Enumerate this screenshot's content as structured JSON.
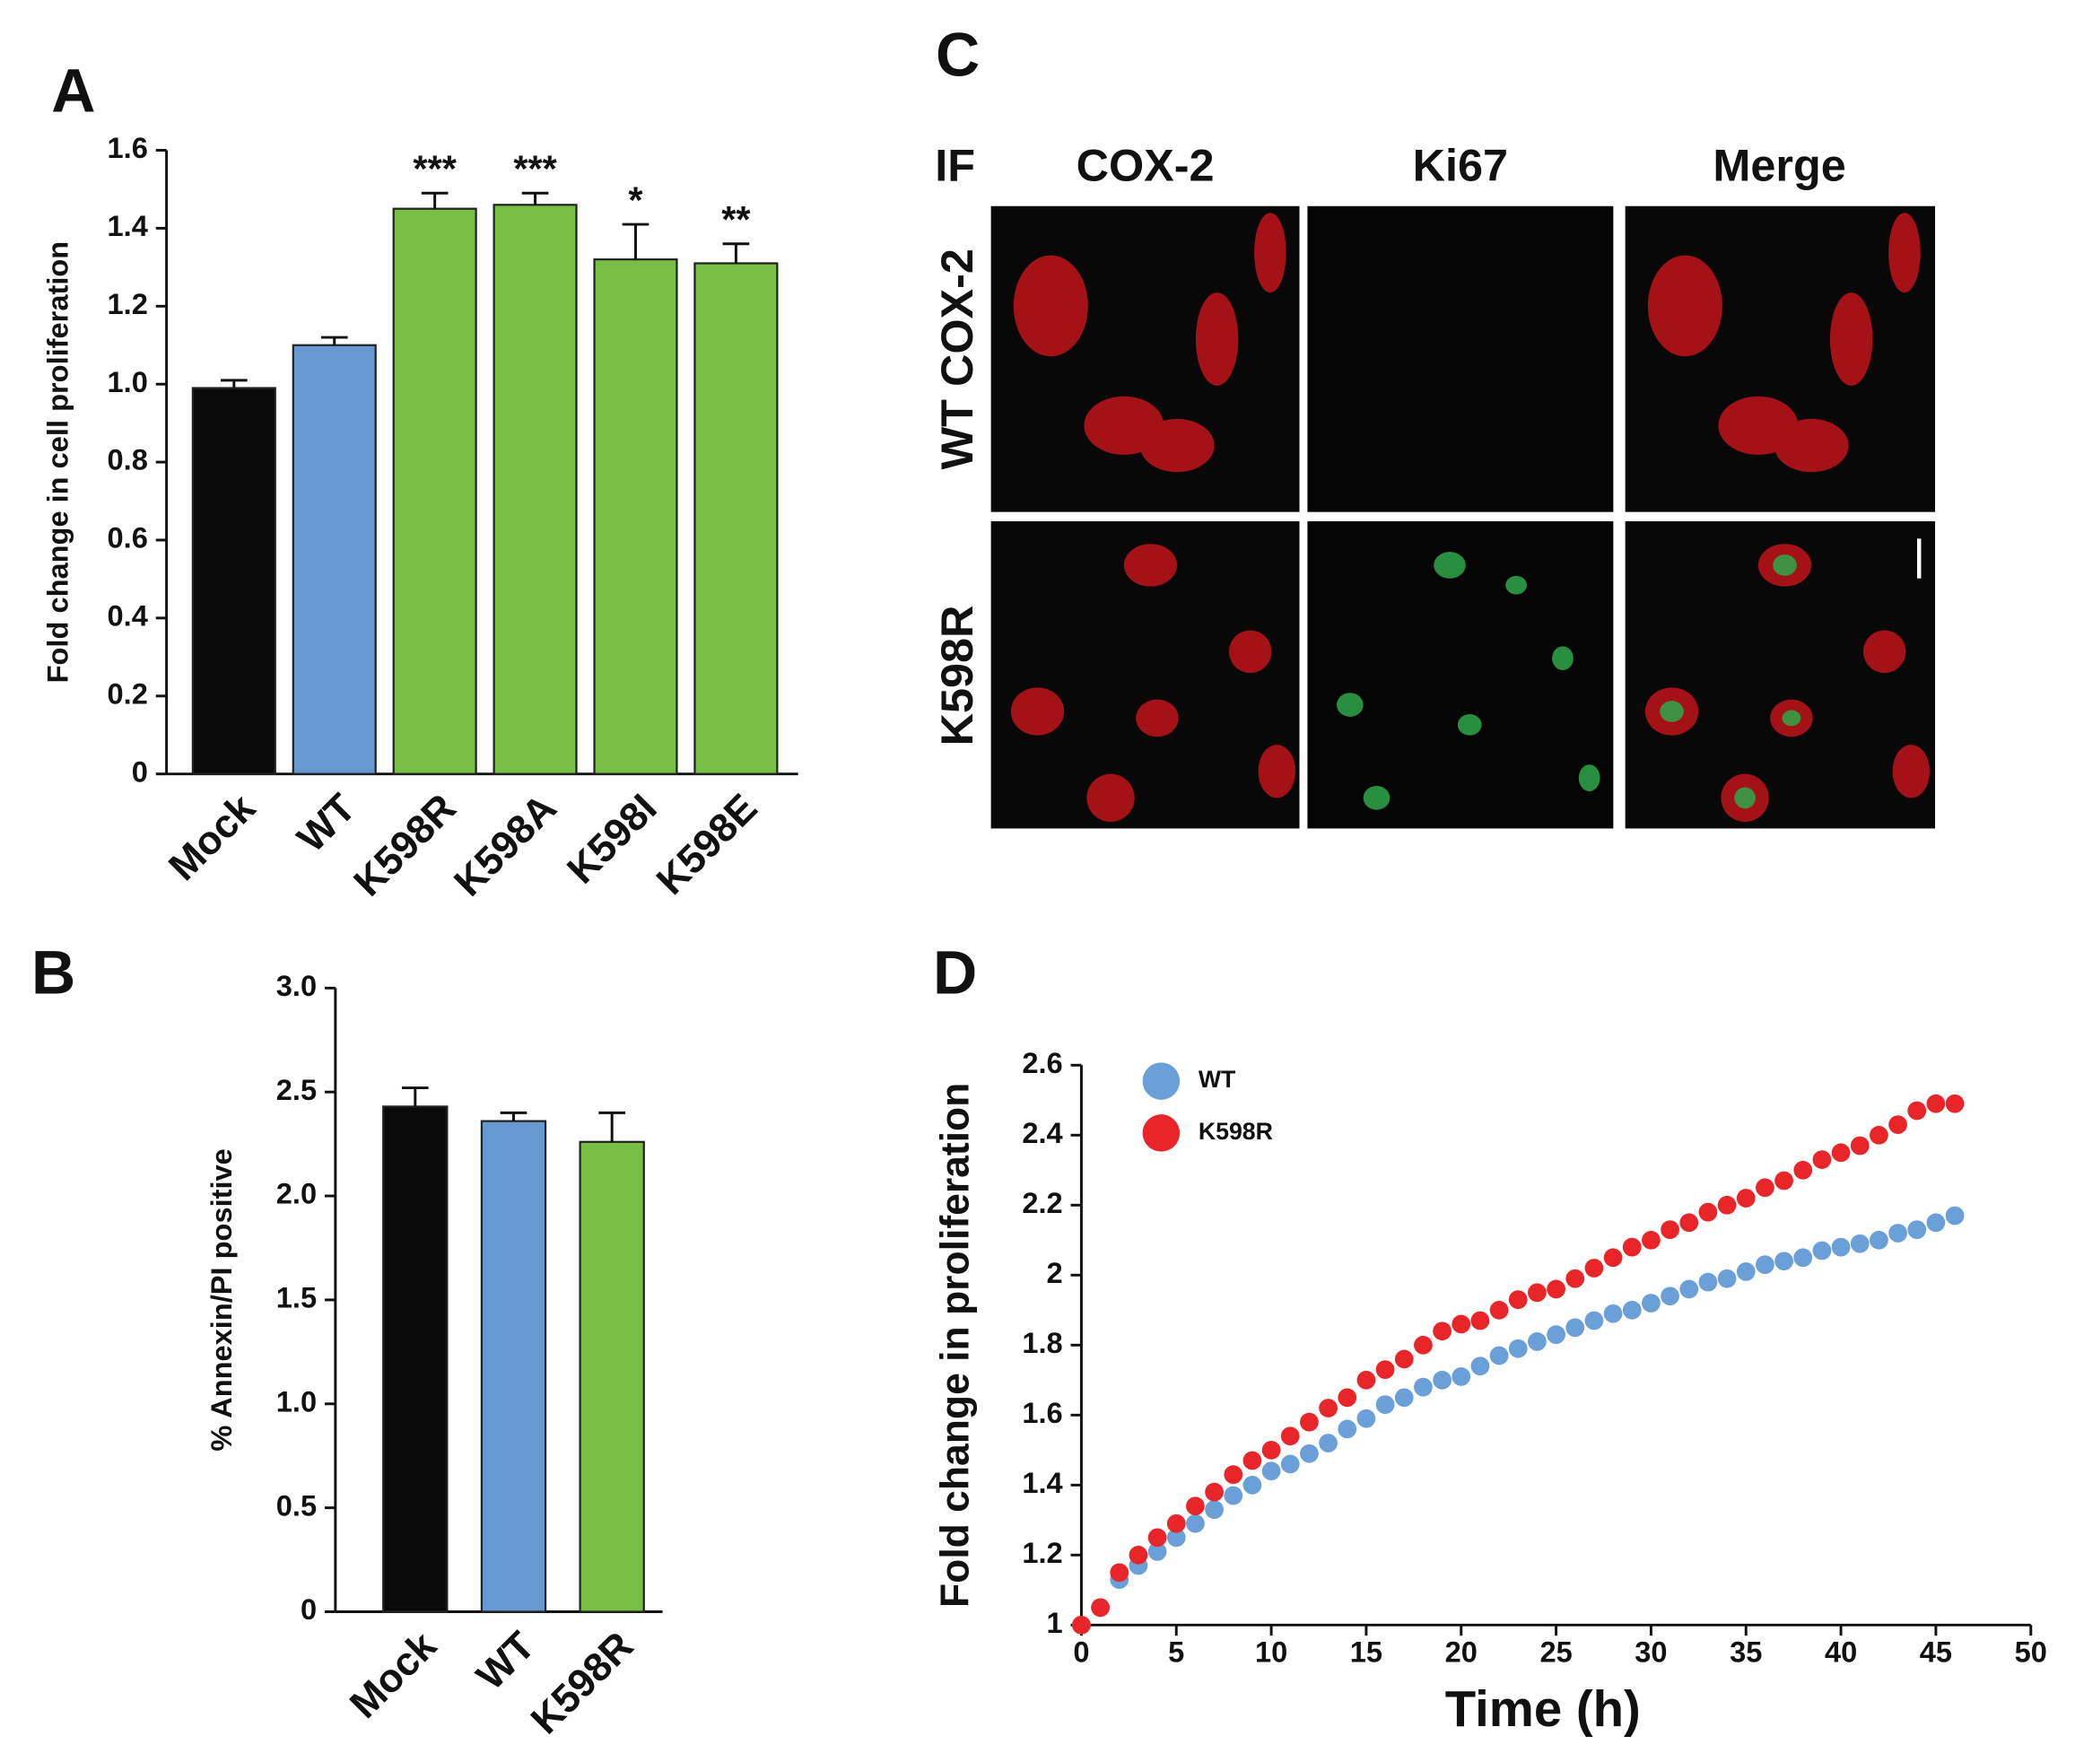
{
  "chart_data": [
    {
      "type": "bar",
      "panel_label": "A",
      "ylabel": "Fold change in cell proliferation",
      "categories": [
        "Mock",
        "WT",
        "K598R",
        "K598A",
        "K598I",
        "K598E"
      ],
      "values": [
        0.99,
        1.1,
        1.45,
        1.46,
        1.32,
        1.31
      ],
      "errors": [
        0.02,
        0.02,
        0.04,
        0.03,
        0.09,
        0.05
      ],
      "annotations": [
        null,
        null,
        "***",
        "***",
        "*",
        "**"
      ],
      "colors": [
        "#0a0a0a",
        "#6699d2",
        "#77bf45",
        "#77bf45",
        "#77bf45",
        "#77bf45"
      ],
      "ylim": [
        0,
        1.6
      ],
      "yticks": [
        0,
        0.2,
        0.4,
        0.6,
        0.8,
        {
          "value": 1,
          "label": "1.0"
        },
        1.2,
        1.4,
        1.6
      ]
    },
    {
      "type": "bar",
      "panel_label": "B",
      "ylabel": "% Annexin/PI positive",
      "categories": [
        "Mock",
        "WT",
        "K598R"
      ],
      "values": [
        2.43,
        2.36,
        2.26
      ],
      "errors": [
        0.09,
        0.04,
        0.14
      ],
      "colors": [
        "#0a0a0a",
        "#6699d2",
        "#77bf45"
      ],
      "ylim": [
        0,
        3
      ],
      "yticks": [
        0,
        0.5,
        {
          "value": 1,
          "label": "1.0"
        },
        1.5,
        {
          "value": 2,
          "label": "2.0"
        },
        2.5,
        {
          "value": 3,
          "label": "3.0"
        }
      ]
    },
    {
      "type": "image-grid",
      "panel_label": "C",
      "corner_label": "IF",
      "column_labels": [
        "COX-2",
        "Ki67",
        "Merge"
      ],
      "row_labels": [
        "WT COX-2",
        "K598R"
      ]
    },
    {
      "type": "scatter",
      "panel_label": "D",
      "xlabel": "Time (h)",
      "ylabel": "Fold change in proliferation",
      "legend": "upper left",
      "x": [
        0,
        1,
        2,
        3,
        4,
        5,
        6,
        7,
        8,
        9,
        10,
        11,
        12,
        13,
        14,
        15,
        16,
        17,
        18,
        19,
        20,
        21,
        22,
        23,
        24,
        25,
        26,
        27,
        28,
        29,
        30,
        31,
        32,
        33,
        34,
        35,
        36,
        37,
        38,
        39,
        40,
        41,
        42,
        43,
        44,
        45,
        46
      ],
      "series": [
        {
          "name": "WT",
          "color": "#6a9fd8",
          "values": [
            1.0,
            1.05,
            1.13,
            1.17,
            1.21,
            1.25,
            1.29,
            1.33,
            1.37,
            1.4,
            1.44,
            1.46,
            1.49,
            1.52,
            1.56,
            1.59,
            1.63,
            1.65,
            1.68,
            1.7,
            1.71,
            1.74,
            1.77,
            1.79,
            1.81,
            1.83,
            1.85,
            1.87,
            1.89,
            1.9,
            1.92,
            1.94,
            1.96,
            1.98,
            1.99,
            2.01,
            2.03,
            2.04,
            2.05,
            2.07,
            2.08,
            2.09,
            2.1,
            2.12,
            2.13,
            2.15,
            2.17
          ]
        },
        {
          "name": "K598R",
          "color": "#e8262a",
          "values": [
            1.0,
            1.05,
            1.15,
            1.2,
            1.25,
            1.29,
            1.34,
            1.38,
            1.43,
            1.47,
            1.5,
            1.54,
            1.58,
            1.62,
            1.65,
            1.7,
            1.73,
            1.76,
            1.8,
            1.84,
            1.86,
            1.87,
            1.9,
            1.93,
            1.95,
            1.96,
            1.99,
            2.02,
            2.05,
            2.08,
            2.1,
            2.13,
            2.15,
            2.18,
            2.2,
            2.22,
            2.25,
            2.27,
            2.3,
            2.33,
            2.35,
            2.37,
            2.4,
            2.43,
            2.47,
            2.49,
            2.49
          ]
        }
      ],
      "xlim": [
        0,
        50
      ],
      "xticks": [
        0,
        5,
        10,
        15,
        20,
        25,
        30,
        35,
        40,
        45,
        50
      ],
      "ylim": [
        1,
        2.6
      ],
      "yticks": [
        1,
        1.2,
        1.4,
        1.6,
        1.8,
        2,
        2.2,
        2.4,
        2.6
      ]
    }
  ]
}
